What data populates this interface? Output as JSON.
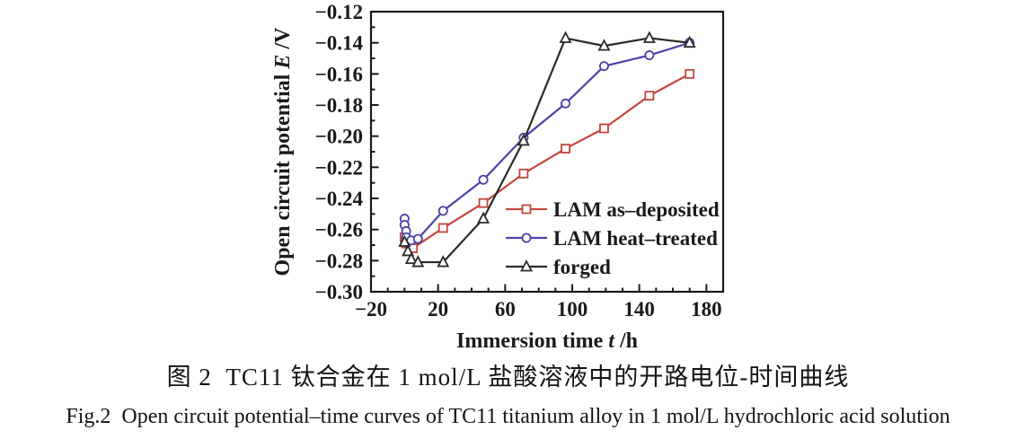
{
  "figure": {
    "caption_zh": "图 2  TC11 钛合金在 1 mol/L 盐酸溶液中的开路电位-时间曲线",
    "caption_en": "Fig.2  Open circuit potential–time curves of TC11 titanium alloy in 1 mol/L hydrochloric acid solution"
  },
  "chart_data": {
    "type": "line",
    "title": "",
    "xlabel": "Immersion time t /h",
    "ylabel": "Open circuit potential E /V",
    "xlabel_parts": {
      "pre": "Immersion time ",
      "var": "t",
      "post": " /h"
    },
    "ylabel_parts": {
      "pre": "Open circuit potential ",
      "var": "E",
      "post": " /V"
    },
    "xlim": [
      -20,
      190
    ],
    "ylim": [
      -0.3,
      -0.12
    ],
    "x_major_ticks": [
      -20,
      20,
      60,
      100,
      140,
      180
    ],
    "x_minor_step": 10,
    "y_major_ticks": [
      -0.12,
      -0.14,
      -0.16,
      -0.18,
      -0.2,
      -0.22,
      -0.24,
      -0.26,
      -0.28,
      -0.3
    ],
    "y_minor_step": 0.01,
    "grid": false,
    "legend_position": "inside-lower-right",
    "axis_color": "#1a1a1a",
    "series": [
      {
        "name": "LAM as–deposited",
        "color": "#c4463e",
        "marker": "square",
        "points": [
          [
            0,
            -0.265
          ],
          [
            1,
            -0.269
          ],
          [
            5,
            -0.272
          ],
          [
            23,
            -0.259
          ],
          [
            47,
            -0.243
          ],
          [
            71,
            -0.224
          ],
          [
            96,
            -0.208
          ],
          [
            119,
            -0.195
          ],
          [
            146,
            -0.174
          ],
          [
            170,
            -0.16
          ]
        ]
      },
      {
        "name": "LAM heat–treated",
        "color": "#4a42a8",
        "marker": "circle",
        "points": [
          [
            0,
            -0.253
          ],
          [
            0,
            -0.257
          ],
          [
            1,
            -0.261
          ],
          [
            1,
            -0.265
          ],
          [
            4,
            -0.267
          ],
          [
            8,
            -0.266
          ],
          [
            23,
            -0.248
          ],
          [
            47,
            -0.228
          ],
          [
            71,
            -0.201
          ],
          [
            96,
            -0.179
          ],
          [
            119,
            -0.155
          ],
          [
            146,
            -0.148
          ],
          [
            170,
            -0.14
          ]
        ]
      },
      {
        "name": "forged",
        "color": "#2b2b2b",
        "marker": "triangle",
        "points": [
          [
            0,
            -0.268
          ],
          [
            2,
            -0.274
          ],
          [
            4,
            -0.279
          ],
          [
            8,
            -0.281
          ],
          [
            23,
            -0.281
          ],
          [
            47,
            -0.253
          ],
          [
            71,
            -0.203
          ],
          [
            96,
            -0.137
          ],
          [
            119,
            -0.142
          ],
          [
            146,
            -0.137
          ],
          [
            170,
            -0.14
          ]
        ]
      }
    ]
  }
}
